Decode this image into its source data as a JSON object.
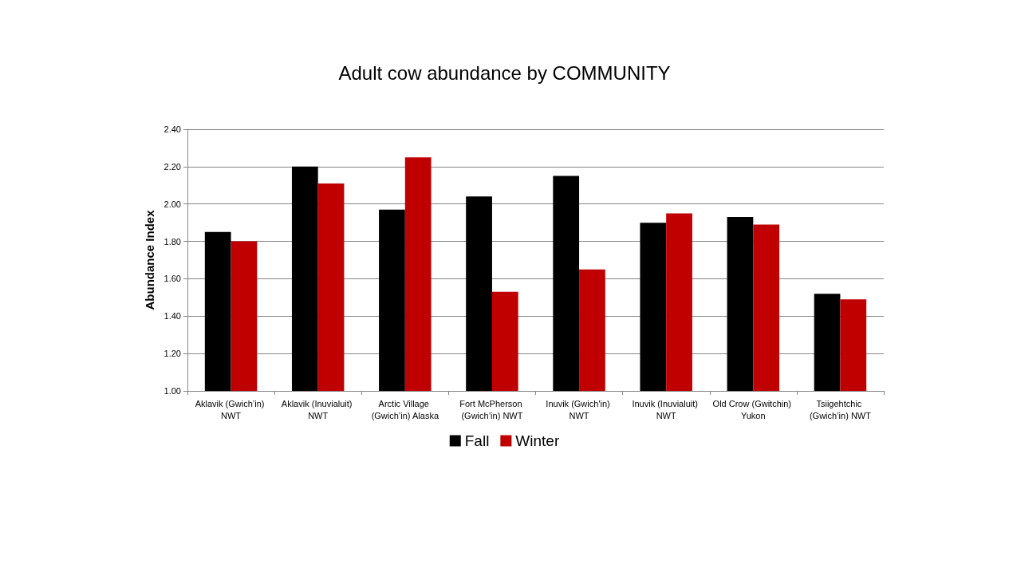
{
  "chart_data": {
    "type": "bar",
    "title": "Adult cow abundance by COMMUNITY",
    "ylabel": "Abundance Index",
    "categories": [
      "Aklavik (Gwich’in) NWT",
      "Aklavik (Inuvialuit) NWT",
      "Arctic Village (Gwich’in) Alaska",
      "Fort McPherson (Gwich’in) NWT",
      "Inuvik (Gwich'in) NWT",
      "Inuvik (Inuvialuit) NWT",
      "Old Crow (Gwitchin) Yukon",
      "Tsiigehtchic (Gwich’in) NWT"
    ],
    "series": [
      {
        "name": "Fall",
        "color": "#000000",
        "values": [
          1.85,
          2.2,
          1.97,
          2.04,
          2.15,
          1.9,
          1.93,
          1.52
        ]
      },
      {
        "name": "Winter",
        "color": "#c00000",
        "values": [
          1.8,
          2.11,
          2.25,
          1.53,
          1.65,
          1.95,
          1.89,
          1.49
        ]
      }
    ],
    "ylim": [
      1.0,
      2.4
    ],
    "yticks": [
      {
        "value": 1.0,
        "label": "1.00"
      },
      {
        "value": 1.2,
        "label": "1.20"
      },
      {
        "value": 1.4,
        "label": "1.40"
      },
      {
        "value": 1.6,
        "label": "1.60"
      },
      {
        "value": 1.8,
        "label": "1.80"
      },
      {
        "value": 2.0,
        "label": "2.00"
      },
      {
        "value": 2.2,
        "label": "2.20"
      },
      {
        "value": 2.4,
        "label": "2.40"
      }
    ],
    "grid": "y",
    "legend": "bottom"
  }
}
